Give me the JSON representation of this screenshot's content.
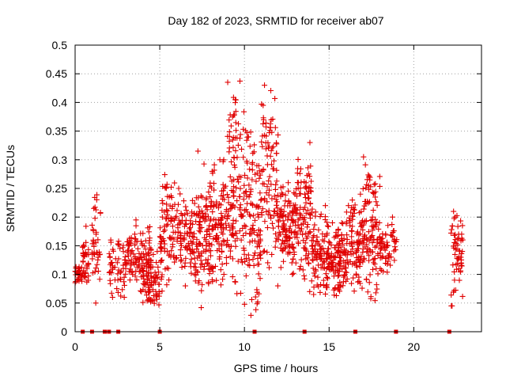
{
  "chart_data": {
    "type": "scatter",
    "title": "Day 182 of 2023, SRMTID for receiver ab07",
    "xlabel": "GPS time / hours",
    "ylabel": "SRMTID / TECUs",
    "xlim": [
      0,
      24
    ],
    "ylim": [
      0,
      0.5
    ],
    "x_ticks": [
      0,
      5,
      10,
      15,
      20
    ],
    "y_ticks": [
      0,
      0.05,
      0.1,
      0.15,
      0.2,
      0.25,
      0.3,
      0.35,
      0.4,
      0.45,
      0.5
    ],
    "grid": true,
    "marker": "+",
    "color": "#e00000",
    "gap_markers_x": [
      0.45,
      1.0,
      1.75,
      2.0,
      2.55,
      5.0,
      10.6,
      13.55,
      16.55,
      18.95,
      22.1
    ],
    "clusters": [
      {
        "x_range": [
          0.0,
          0.4
        ],
        "y_range": [
          0.08,
          0.12
        ],
        "n": 30
      },
      {
        "x_range": [
          0.4,
          0.8
        ],
        "y_range": [
          0.05,
          0.19
        ],
        "n": 35
      },
      {
        "x_range": [
          1.0,
          1.5
        ],
        "y_range": [
          0.05,
          0.255
        ],
        "n": 40
      },
      {
        "x_range": [
          2.0,
          3.0
        ],
        "y_range": [
          0.06,
          0.16
        ],
        "n": 60
      },
      {
        "x_range": [
          3.0,
          4.5
        ],
        "y_range": [
          0.07,
          0.195
        ],
        "n": 110
      },
      {
        "x_range": [
          4.0,
          5.0
        ],
        "y_range": [
          0.035,
          0.14
        ],
        "n": 70
      },
      {
        "x_range": [
          5.0,
          6.0
        ],
        "y_range": [
          0.06,
          0.28
        ],
        "n": 90
      },
      {
        "x_range": [
          6.0,
          8.0
        ],
        "y_range": [
          0.08,
          0.25
        ],
        "n": 150
      },
      {
        "x_range": [
          7.0,
          8.0
        ],
        "y_range": [
          0.03,
          0.32
        ],
        "n": 40
      },
      {
        "x_range": [
          8.0,
          9.0
        ],
        "y_range": [
          0.06,
          0.3
        ],
        "n": 110
      },
      {
        "x_range": [
          9.0,
          10.0
        ],
        "y_range": [
          0.05,
          0.455
        ],
        "n": 120
      },
      {
        "x_range": [
          10.0,
          11.0
        ],
        "y_range": [
          0.02,
          0.38
        ],
        "n": 110
      },
      {
        "x_range": [
          11.0,
          12.0
        ],
        "y_range": [
          0.08,
          0.43
        ],
        "n": 100
      },
      {
        "x_range": [
          12.0,
          13.0
        ],
        "y_range": [
          0.1,
          0.26
        ],
        "n": 110
      },
      {
        "x_range": [
          13.0,
          14.0
        ],
        "y_range": [
          0.07,
          0.33
        ],
        "n": 110
      },
      {
        "x_range": [
          14.0,
          15.0
        ],
        "y_range": [
          0.05,
          0.22
        ],
        "n": 100
      },
      {
        "x_range": [
          15.0,
          16.0
        ],
        "y_range": [
          0.06,
          0.19
        ],
        "n": 110
      },
      {
        "x_range": [
          16.0,
          17.0
        ],
        "y_range": [
          0.07,
          0.24
        ],
        "n": 100
      },
      {
        "x_range": [
          17.0,
          18.0
        ],
        "y_range": [
          0.05,
          0.305
        ],
        "n": 110
      },
      {
        "x_range": [
          18.0,
          19.0
        ],
        "y_range": [
          0.09,
          0.2
        ],
        "n": 60
      },
      {
        "x_range": [
          22.2,
          22.9
        ],
        "y_range": [
          0.045,
          0.23
        ],
        "n": 60
      }
    ]
  }
}
